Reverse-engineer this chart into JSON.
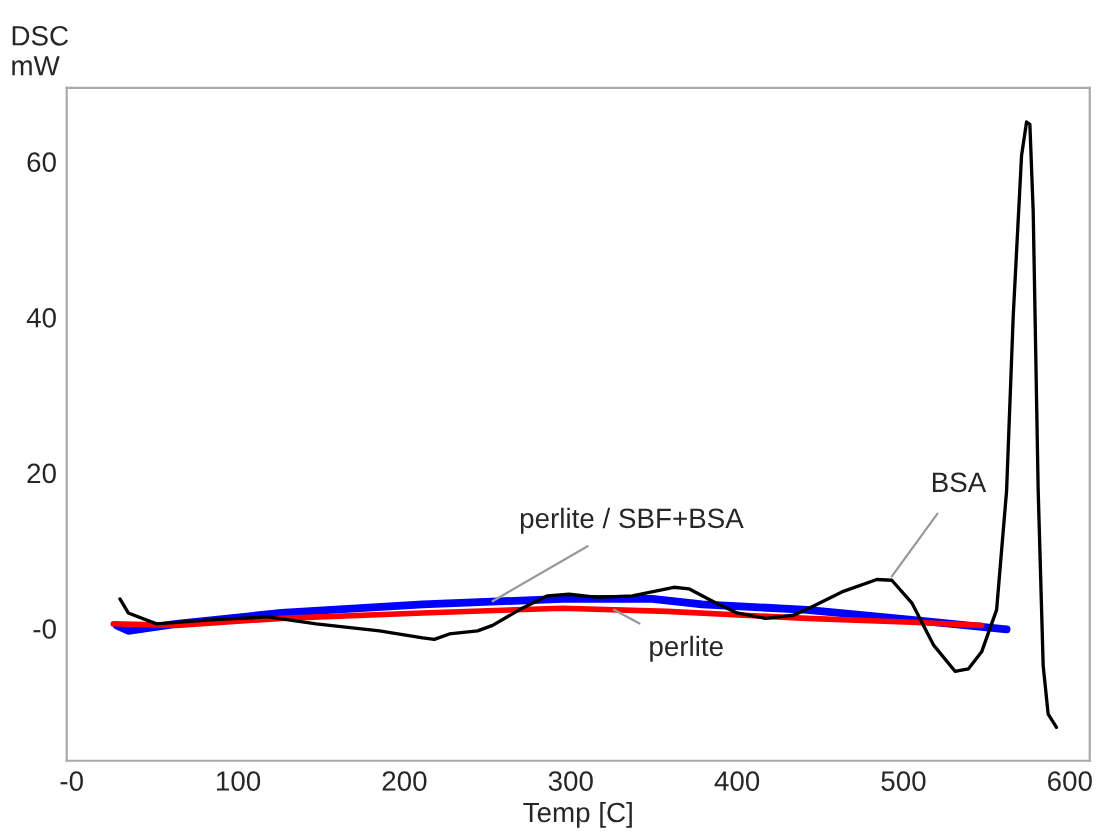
{
  "chart_data": {
    "type": "line",
    "xlabel": "Temp [C]",
    "ylabel": "DSC\nmW",
    "xlim": [
      -3,
      612
    ],
    "ylim": [
      -17,
      69.5
    ],
    "xticks": [
      {
        "value": 0,
        "label": "-0"
      },
      100,
      200,
      300,
      400,
      500,
      600
    ],
    "yticks": [
      {
        "value": 0,
        "label": "-0"
      },
      20,
      40,
      60
    ],
    "grid": false,
    "marker": "none",
    "line_style": "solid",
    "series": [
      {
        "color": "#0000ff",
        "x": [
          27,
          34,
          63,
          126,
          211,
          295,
          349,
          379,
          442,
          505,
          562
        ],
        "values": [
          0.4,
          -0.3,
          0.6,
          2.0,
          3.1,
          3.8,
          3.8,
          3.1,
          2.4,
          1.1,
          -0.1
        ]
      },
      {
        "color": "#ff0000",
        "x": [
          25,
          63,
          126,
          211,
          295,
          358,
          442,
          505,
          547
        ],
        "values": [
          0.6,
          0.4,
          1.3,
          2.0,
          2.6,
          2.2,
          1.3,
          0.8,
          0.4
        ]
      },
      {
        "color": "#000000",
        "x": [
          29,
          34,
          51,
          84,
          118,
          147,
          185,
          211,
          218,
          227,
          244,
          253,
          269,
          286,
          299,
          316,
          337,
          362,
          371,
          387,
          400,
          417,
          434,
          446,
          463,
          484,
          493,
          505,
          518,
          531,
          539,
          547,
          556,
          562,
          566,
          571,
          574,
          576,
          578,
          581,
          584,
          587,
          592
        ],
        "values": [
          3.8,
          2.0,
          0.6,
          1.1,
          1.5,
          0.6,
          -0.3,
          -1.2,
          -1.4,
          -0.7,
          -0.3,
          0.4,
          2.4,
          4.2,
          4.4,
          4.0,
          4.2,
          5.3,
          5.1,
          3.3,
          2.0,
          1.3,
          1.7,
          2.9,
          4.7,
          6.3,
          6.2,
          3.3,
          -2.1,
          -5.5,
          -5.2,
          -3.0,
          2.4,
          17.7,
          40.2,
          60.8,
          65.1,
          64.8,
          53.6,
          17.7,
          -4.8,
          -11,
          -12.7
        ]
      }
    ],
    "annotations": [
      {
        "text": "perlite / SBF+BSA",
        "x": 253,
        "y": 3.5
      },
      {
        "text": "BSA",
        "x": 493,
        "y": 6.7
      },
      {
        "text": "perlite",
        "x": 326,
        "y": 2.4
      }
    ]
  }
}
